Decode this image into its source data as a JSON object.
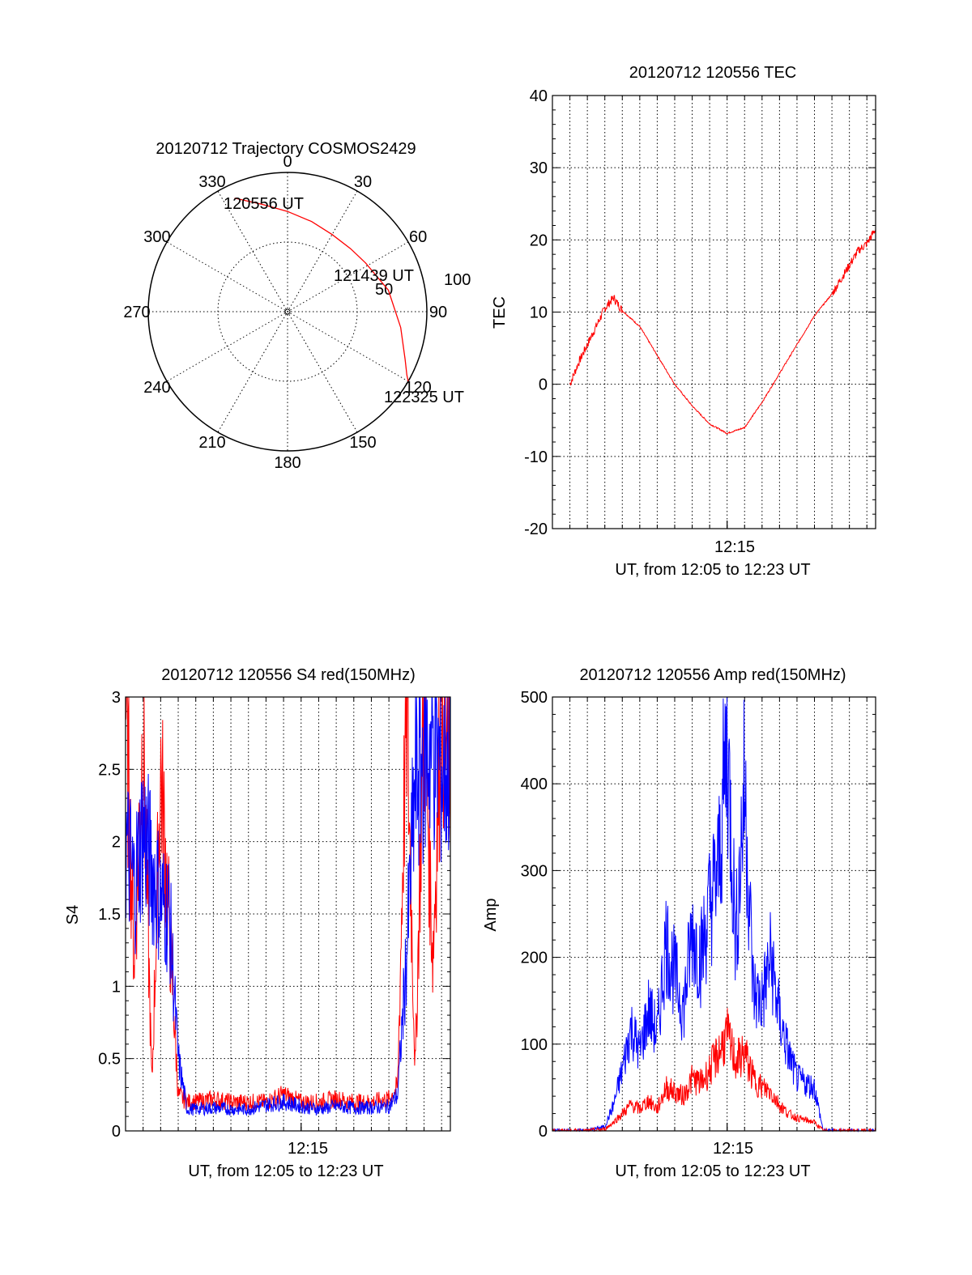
{
  "colors": {
    "red": "#ff0000",
    "blue": "#0000ff",
    "axis": "#000000",
    "background": "#ffffff"
  },
  "chart_data": [
    {
      "type": "polar",
      "title": "20120712 Trajectory COSMOS2429",
      "azimuth_labels": [
        "0",
        "30",
        "60",
        "90",
        "120",
        "150",
        "180",
        "210",
        "240",
        "270",
        "300",
        "330"
      ],
      "ring_labels": [
        "50",
        "100"
      ],
      "elevation_rings": [
        50,
        100
      ],
      "annotations": [
        "120556 UT",
        "121439 UT",
        "122325 UT"
      ],
      "series": [
        {
          "color": "red",
          "azimuth_deg": [
            335,
            347,
            0,
            15,
            30,
            45,
            58,
            78,
            98,
            112,
            118,
            120
          ],
          "radius": [
            90,
            79,
            72,
            67,
            64,
            64,
            66,
            74,
            82,
            91,
            97,
            100
          ]
        }
      ]
    },
    {
      "type": "line",
      "title": "20120712 120556 TEC",
      "xlabel": "UT, from 12:05 to 12:23 UT",
      "ylabel": "TEC",
      "xtick_labels": [
        "12:15"
      ],
      "ylim": [
        -20,
        40
      ],
      "yticks": [
        "-20",
        "-10",
        "0",
        "10",
        "20",
        "30",
        "40"
      ],
      "xlim_minutes": [
        -10,
        8.5
      ],
      "grid": true,
      "series": [
        {
          "color": "red",
          "x": [
            -9,
            -8.5,
            -8,
            -7.5,
            -7,
            -6.5,
            -6,
            -5,
            -4,
            -3,
            -2,
            -1,
            0,
            1,
            2,
            3,
            4,
            5,
            6,
            6.5,
            7,
            7.5,
            8,
            8.5
          ],
          "y": [
            0,
            3,
            5.5,
            8,
            10.5,
            12,
            10.2,
            8,
            4,
            0,
            -3,
            -5.5,
            -6.8,
            -6,
            -2.5,
            1.5,
            5.5,
            9.5,
            12.5,
            14.5,
            16.5,
            18.5,
            19.5,
            21.5
          ]
        }
      ]
    },
    {
      "type": "line",
      "title": "20120712 120556 S4 red(150MHz)",
      "xlabel": "UT, from 12:05 to 12:23 UT",
      "ylabel": "S4",
      "xtick_labels": [
        "12:15"
      ],
      "ylim": [
        0,
        3
      ],
      "yticks": [
        "0",
        "0.5",
        "1",
        "1.5",
        "2",
        "2.5",
        "3"
      ],
      "xlim_minutes": [
        -10,
        8.5
      ],
      "grid": true,
      "series": [
        {
          "color": "red",
          "x": [
            -10,
            -9.5,
            -9,
            -8.5,
            -8,
            -7.5,
            -7,
            -6.5,
            -6,
            -5,
            -4,
            -3,
            -2,
            -1,
            0,
            1,
            2,
            3,
            4,
            5,
            5.5,
            6,
            6.5,
            7,
            7.5,
            8,
            8.5
          ],
          "y": [
            3,
            1.2,
            2.8,
            0.3,
            2.5,
            1.4,
            0.25,
            0.2,
            0.2,
            0.22,
            0.2,
            0.2,
            0.2,
            0.25,
            0.2,
            0.2,
            0.22,
            0.2,
            0.2,
            0.22,
            0.3,
            3,
            0.4,
            3,
            1.2,
            3,
            2.4
          ]
        },
        {
          "color": "blue",
          "x": [
            -10,
            -9.5,
            -9,
            -8.5,
            -8,
            -7.5,
            -7,
            -6.5,
            -6,
            -5,
            -4,
            -3,
            -2,
            -1,
            0,
            1,
            2,
            3,
            4,
            5,
            5.5,
            6,
            6.5,
            7,
            7.5,
            8,
            8.5
          ],
          "y": [
            2,
            1.7,
            2.1,
            1.8,
            1.6,
            1.5,
            0.5,
            0.15,
            0.15,
            0.16,
            0.15,
            0.15,
            0.18,
            0.2,
            0.17,
            0.15,
            0.17,
            0.16,
            0.16,
            0.17,
            0.25,
            1.2,
            2.4,
            2.6,
            2.7,
            2.5,
            2.6
          ]
        }
      ]
    },
    {
      "type": "line",
      "title": "20120712 120556 Amp red(150MHz)",
      "xlabel": "UT, from 12:05 to 12:23 UT",
      "ylabel": "Amp",
      "xtick_labels": [
        "12:15"
      ],
      "ylim": [
        0,
        500
      ],
      "yticks": [
        "0",
        "100",
        "200",
        "300",
        "400",
        "500"
      ],
      "xlim_minutes": [
        -10,
        8.5
      ],
      "grid": true,
      "series": [
        {
          "color": "blue",
          "x": [
            -10,
            -9,
            -8,
            -7,
            -6.5,
            -6,
            -5.5,
            -5,
            -4.5,
            -4,
            -3.5,
            -3,
            -2.5,
            -2,
            -1.5,
            -1,
            -0.5,
            0,
            0.5,
            1,
            1.5,
            2,
            2.5,
            3,
            3.5,
            4,
            5,
            5.5,
            6,
            7,
            8.5
          ],
          "y": [
            0,
            0,
            0,
            5,
            30,
            70,
            120,
            90,
            140,
            110,
            220,
            180,
            140,
            230,
            200,
            260,
            300,
            450,
            220,
            400,
            160,
            150,
            200,
            130,
            90,
            60,
            50,
            0,
            0,
            0,
            0
          ]
        },
        {
          "color": "red",
          "x": [
            -10,
            -9,
            -8,
            -7,
            -6.5,
            -6,
            -5.5,
            -5,
            -4.5,
            -4,
            -3.5,
            -3,
            -2.5,
            -2,
            -1.5,
            -1,
            -0.5,
            0,
            0.5,
            1,
            1.5,
            2,
            2.5,
            3,
            3.5,
            4,
            5,
            5.5,
            6,
            7,
            8.5
          ],
          "y": [
            0,
            0,
            0,
            2,
            10,
            20,
            30,
            25,
            35,
            25,
            50,
            45,
            40,
            60,
            55,
            70,
            90,
            110,
            80,
            90,
            60,
            50,
            45,
            30,
            20,
            15,
            10,
            0,
            0,
            0,
            0
          ]
        }
      ]
    }
  ]
}
